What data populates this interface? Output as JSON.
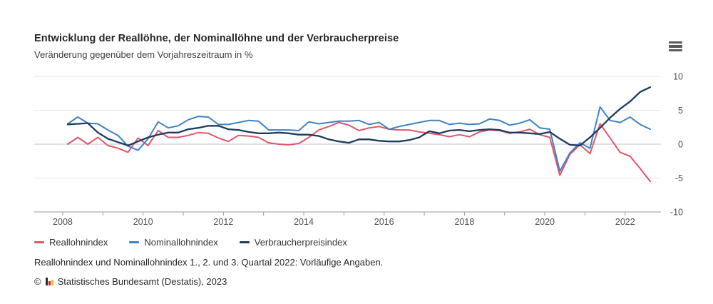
{
  "header": {
    "title": "Entwicklung der Reallöhne, der Nominallöhne und der Verbraucherpreise",
    "subtitle": "Veränderung gegenüber dem Vorjahreszeitraum in %"
  },
  "menu": {
    "icon": "hamburger-menu-icon"
  },
  "chart_data": {
    "type": "line",
    "title": "Entwicklung der Reallöhne, der Nominallöhne und der Verbraucherpreise",
    "subtitle": "Veränderung gegenüber dem Vorjahreszeitraum in %",
    "x_period": "quarterly",
    "x_range": [
      "2008-Q1",
      "2022-Q3"
    ],
    "x_years": [
      2008,
      2009,
      2010,
      2011,
      2012,
      2013,
      2014,
      2015,
      2016,
      2017,
      2018,
      2019,
      2020,
      2021,
      2022
    ],
    "x_labeled_years": [
      2008,
      2010,
      2012,
      2014,
      2016,
      2018,
      2020,
      2022
    ],
    "ylim": [
      -10,
      10
    ],
    "yticks": [
      10,
      5,
      0,
      -5,
      -10
    ],
    "grid": "horizontal",
    "legend_position": "bottom-left",
    "axis_color": "#999999",
    "grid_color": "#e6e6e6",
    "zero_line_color": "#c0c0c0",
    "series": [
      {
        "name": "Reallohnindex",
        "color": "#e2556a",
        "values": [
          0.0,
          1.0,
          0.0,
          1.0,
          -0.2,
          -0.6,
          -1.2,
          0.9,
          -0.2,
          2.0,
          1.0,
          1.0,
          1.3,
          1.7,
          1.6,
          0.9,
          0.4,
          1.3,
          1.2,
          1.0,
          0.2,
          0.0,
          -0.1,
          0.1,
          1.0,
          2.1,
          2.6,
          3.2,
          2.8,
          2.0,
          2.4,
          2.6,
          2.2,
          2.1,
          2.1,
          1.8,
          1.6,
          1.4,
          1.1,
          1.4,
          1.1,
          1.8,
          2.1,
          2.0,
          1.6,
          1.8,
          2.2,
          1.4,
          1.0,
          -4.6,
          -1.5,
          -0.1,
          -1.4,
          3.0,
          0.9,
          -1.2,
          -1.8,
          -3.6,
          -5.5
        ]
      },
      {
        "name": "Nominallohnindex",
        "color": "#3d82c4",
        "values": [
          3.0,
          4.0,
          3.1,
          3.0,
          2.1,
          1.3,
          -0.3,
          -0.9,
          0.8,
          3.3,
          2.4,
          2.7,
          3.6,
          4.1,
          4.0,
          2.9,
          2.9,
          3.2,
          3.5,
          3.4,
          2.1,
          2.1,
          2.1,
          2.0,
          3.3,
          3.0,
          3.2,
          3.4,
          3.4,
          3.5,
          2.9,
          3.2,
          2.2,
          2.6,
          2.9,
          3.2,
          3.5,
          3.5,
          2.9,
          3.1,
          2.9,
          3.0,
          3.7,
          3.5,
          2.8,
          3.1,
          3.6,
          2.4,
          2.2,
          -4.0,
          -1.3,
          0.2,
          -0.6,
          5.5,
          3.5,
          3.2,
          4.0,
          2.9,
          2.2
        ]
      },
      {
        "name": "Verbraucherpreisindex",
        "color": "#1e3a5f",
        "values": [
          2.9,
          3.0,
          3.1,
          1.7,
          0.8,
          0.3,
          -0.2,
          0.4,
          1.0,
          1.4,
          1.7,
          1.7,
          2.2,
          2.4,
          2.7,
          2.7,
          2.2,
          2.1,
          1.8,
          1.6,
          1.6,
          1.7,
          1.6,
          1.4,
          1.4,
          1.2,
          0.7,
          0.4,
          0.2,
          0.7,
          0.7,
          0.5,
          0.4,
          0.4,
          0.6,
          1.0,
          1.9,
          1.6,
          2.0,
          2.1,
          1.9,
          2.1,
          2.2,
          2.1,
          1.7,
          1.7,
          1.6,
          1.5,
          1.8,
          0.8,
          -0.1,
          -0.2,
          1.0,
          2.4,
          3.9,
          5.2,
          6.3,
          7.7,
          8.4
        ]
      }
    ]
  },
  "footer": {
    "note": "Reallohnindex und Nominallohnindex 1., 2. und 3. Quartal 2022: Vorläufige Angaben.",
    "copyright_symbol": "©",
    "copyright_text": "Statistisches Bundesamt (Destatis), 2023",
    "logo": "destatis-bar-chart-icon"
  }
}
